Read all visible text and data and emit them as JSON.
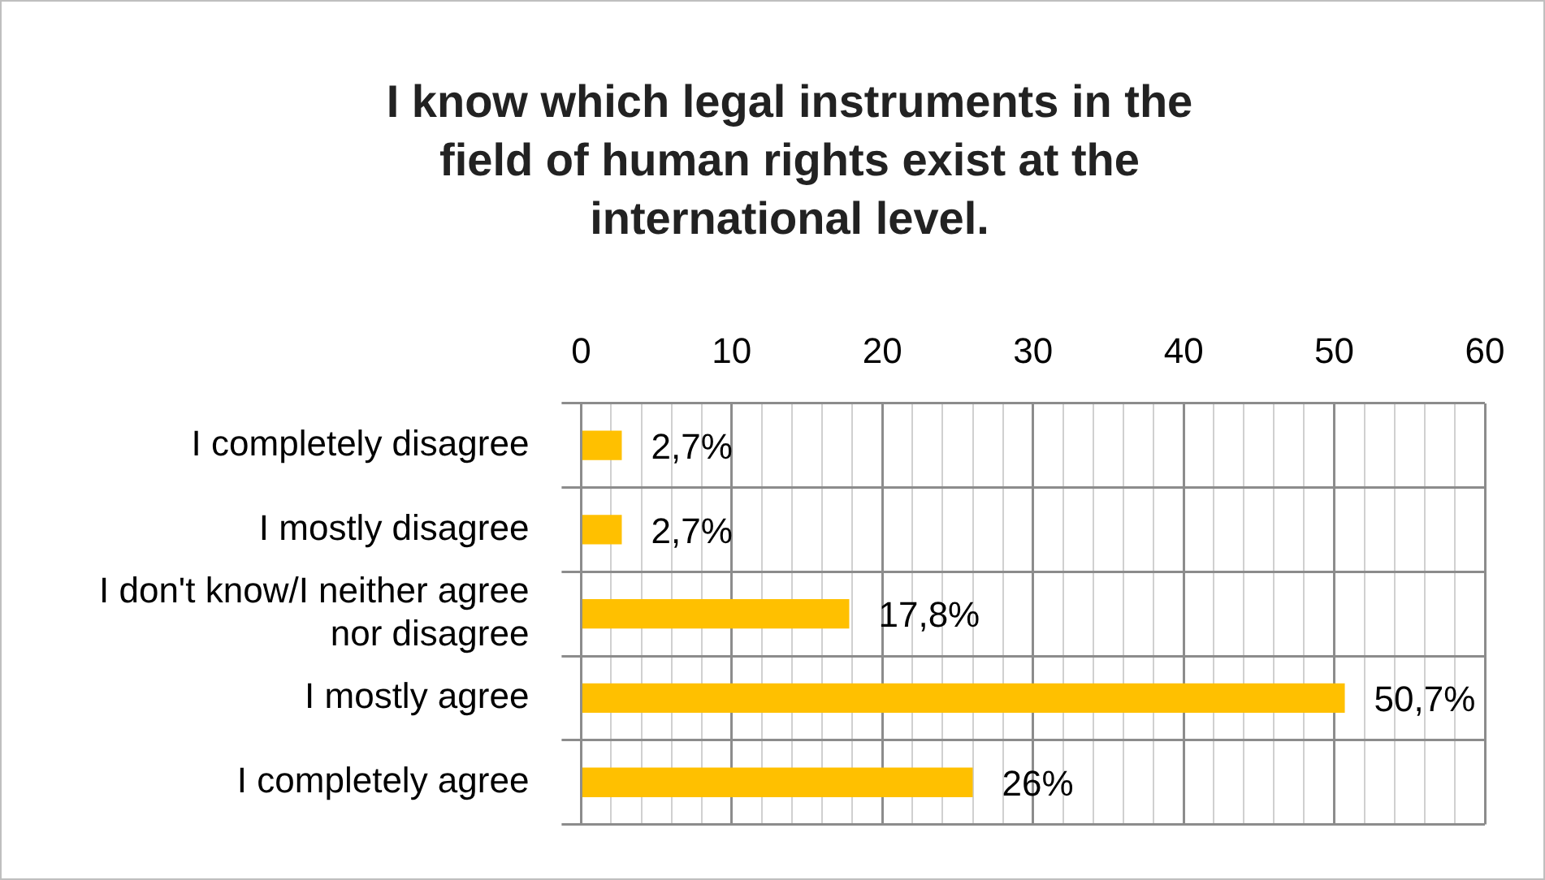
{
  "chart_data": {
    "type": "bar",
    "orientation": "horizontal",
    "title": "I know which legal instruments in the field of human rights exist at the international level.",
    "categories": [
      "I completely disagree",
      "I mostly disagree",
      "I don't know/I neither agree nor disagree",
      "I mostly agree",
      "I completely agree"
    ],
    "values": [
      2.7,
      2.7,
      17.8,
      50.7,
      26
    ],
    "color": "#ffc000",
    "value_labels": [
      "2,7%",
      "2,7%",
      "17,8%",
      "50,7%",
      "26%"
    ],
    "xlim": [
      0,
      60
    ],
    "xticks": [
      0,
      {
        "value": 2,
        "label": null
      },
      {
        "value": 4,
        "label": null
      },
      {
        "value": 6,
        "label": null
      },
      {
        "value": 8,
        "label": null
      },
      10,
      {
        "value": 12,
        "label": null
      },
      {
        "value": 14,
        "label": null
      },
      {
        "value": 16,
        "label": null
      },
      {
        "value": 18,
        "label": null
      },
      20,
      {
        "value": 22,
        "label": null
      },
      {
        "value": 24,
        "label": null
      },
      {
        "value": 26,
        "label": null
      },
      {
        "value": 28,
        "label": null
      },
      30,
      {
        "value": 32,
        "label": null
      },
      {
        "value": 34,
        "label": null
      },
      {
        "value": 36,
        "label": null
      },
      {
        "value": 38,
        "label": null
      },
      40,
      {
        "value": 42,
        "label": null
      },
      {
        "value": 44,
        "label": null
      },
      {
        "value": 46,
        "label": null
      },
      {
        "value": 48,
        "label": null
      },
      50,
      {
        "value": 52,
        "label": null
      },
      {
        "value": 54,
        "label": null
      },
      {
        "value": 56,
        "label": null
      },
      {
        "value": 58,
        "label": null
      },
      60
    ],
    "grid": true,
    "legend": false
  }
}
